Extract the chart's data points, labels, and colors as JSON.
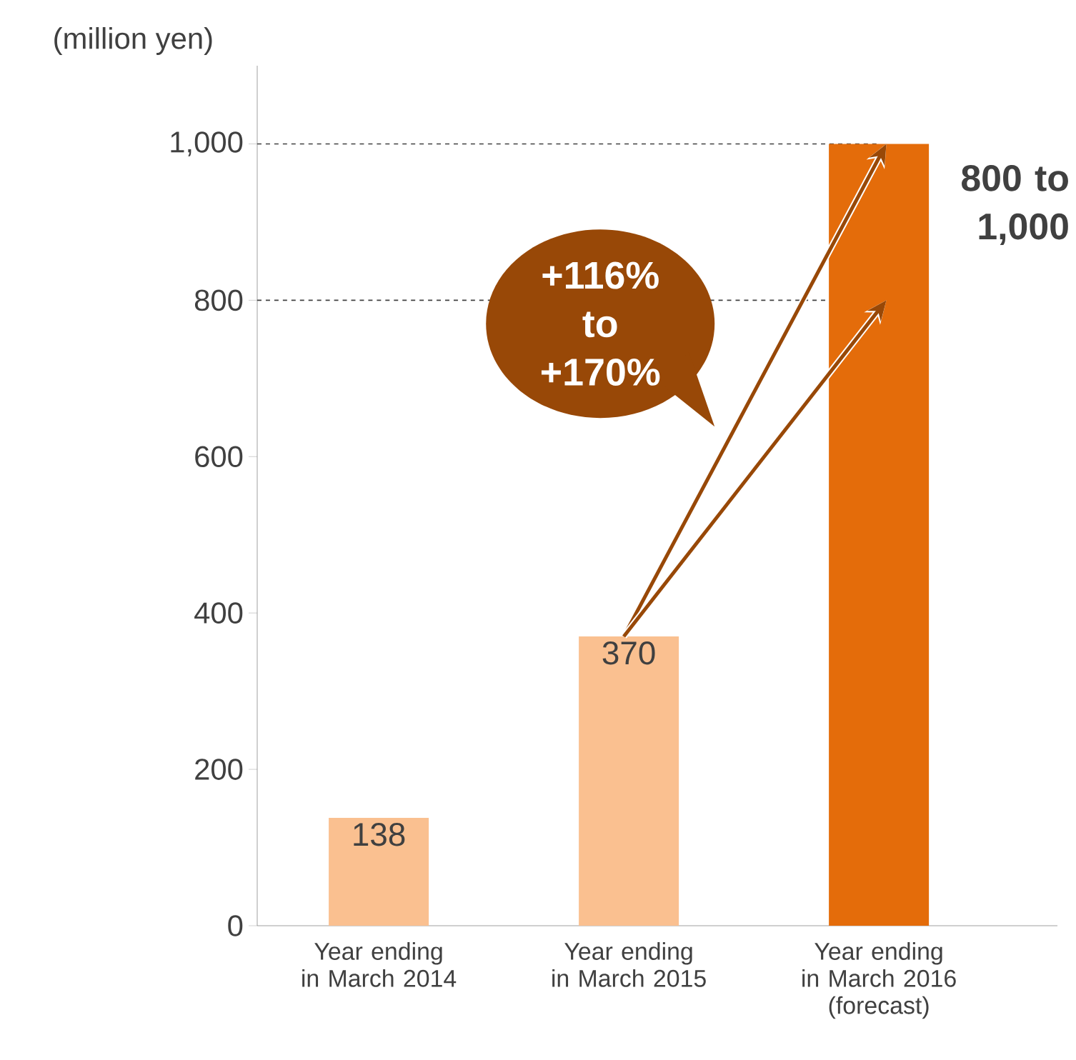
{
  "chart_data": {
    "type": "bar",
    "ylabel": "(million yen)",
    "categories": [
      "Year ending in March 2014",
      "Year ending in March 2015",
      "Year ending in March 2016 (forecast)"
    ],
    "values": [
      138,
      370,
      1000
    ],
    "colors": [
      "#fac090",
      "#fac090",
      "#e46c0a"
    ],
    "value_labels": [
      "138",
      "370",
      null
    ],
    "ylim": [
      0,
      1100
    ],
    "yticks": [
      0,
      200,
      400,
      600,
      800,
      {
        "value": 1000,
        "label": "1,000"
      }
    ],
    "ref_lines": [
      {
        "axis": "y",
        "value": 1000,
        "color": "#404040",
        "line_style": "dashed"
      },
      {
        "axis": "y",
        "value": 800,
        "color": "#404040",
        "line_style": "dashed"
      }
    ],
    "annotations": [
      "+116% to +170%",
      "800 to 1,000"
    ],
    "grid": false
  }
}
